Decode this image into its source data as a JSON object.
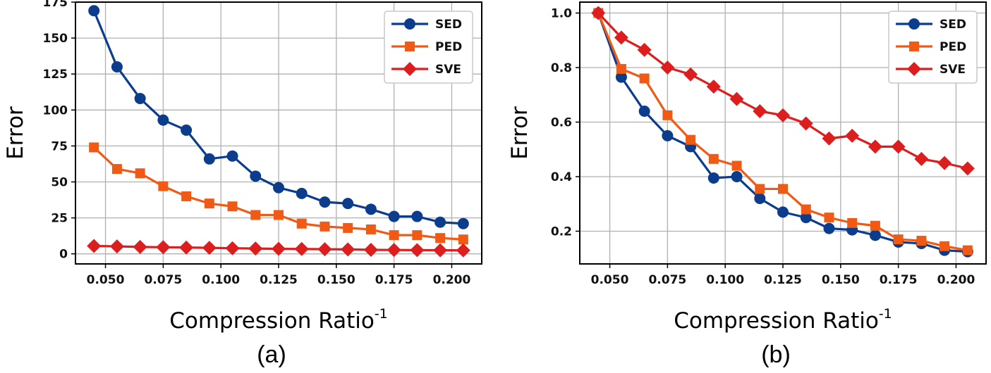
{
  "chart_data": [
    {
      "type": "line",
      "panel_label": "(a)",
      "xlabel": "Compression Ratio",
      "xlabel_sup": "-1",
      "ylabel": "Error",
      "x": [
        0.045,
        0.055,
        0.065,
        0.075,
        0.085,
        0.095,
        0.105,
        0.115,
        0.125,
        0.135,
        0.145,
        0.155,
        0.165,
        0.175,
        0.185,
        0.195,
        0.205
      ],
      "xlim": [
        0.037,
        0.213
      ],
      "ylim": [
        -7,
        175
      ],
      "xticks": [
        0.05,
        0.075,
        0.1,
        0.125,
        0.15,
        0.175,
        0.2
      ],
      "xtick_labels": [
        "0.050",
        "0.075",
        "0.100",
        "0.125",
        "0.150",
        "0.175",
        "0.200"
      ],
      "yticks": [
        0,
        25,
        50,
        75,
        100,
        125,
        150,
        175
      ],
      "ytick_labels": [
        "0",
        "25",
        "50",
        "75",
        "100",
        "125",
        "150",
        "175"
      ],
      "grid": true,
      "legend_position": "top-right",
      "series": [
        {
          "name": "SED",
          "color": "#0b3d8c",
          "marker": "circle",
          "values": [
            169,
            130,
            108,
            93,
            86,
            66,
            68,
            54,
            46,
            42,
            36,
            35,
            31,
            26,
            26,
            22,
            21
          ]
        },
        {
          "name": "PED",
          "color": "#f05a14",
          "marker": "square",
          "values": [
            74,
            59,
            56,
            47,
            40,
            35,
            33,
            27,
            27,
            21,
            19,
            18,
            17,
            13,
            13,
            11,
            10
          ]
        },
        {
          "name": "SVE",
          "color": "#dc1e1e",
          "marker": "diamond",
          "values": [
            5.5,
            5.2,
            4.8,
            4.6,
            4.4,
            4.2,
            3.9,
            3.7,
            3.5,
            3.4,
            3.2,
            3.1,
            2.8,
            2.7,
            2.6,
            2.5,
            2.4
          ]
        }
      ]
    },
    {
      "type": "line",
      "panel_label": "(b)",
      "xlabel": "Compression Ratio",
      "xlabel_sup": "-1",
      "ylabel": "Error",
      "x": [
        0.045,
        0.055,
        0.065,
        0.075,
        0.085,
        0.095,
        0.105,
        0.115,
        0.125,
        0.135,
        0.145,
        0.155,
        0.165,
        0.175,
        0.185,
        0.195,
        0.205
      ],
      "xlim": [
        0.037,
        0.213
      ],
      "ylim": [
        0.08,
        1.04
      ],
      "xticks": [
        0.05,
        0.075,
        0.1,
        0.125,
        0.15,
        0.175,
        0.2
      ],
      "xtick_labels": [
        "0.050",
        "0.075",
        "0.100",
        "0.125",
        "0.150",
        "0.175",
        "0.200"
      ],
      "yticks": [
        0.2,
        0.4,
        0.6,
        0.8,
        1.0
      ],
      "ytick_labels": [
        "0.2",
        "0.4",
        "0.6",
        "0.8",
        "1.0"
      ],
      "grid": true,
      "legend_position": "top-right",
      "series": [
        {
          "name": "SED",
          "color": "#0b3d8c",
          "marker": "circle",
          "values": [
            1.0,
            0.765,
            0.64,
            0.55,
            0.51,
            0.395,
            0.4,
            0.32,
            0.27,
            0.25,
            0.21,
            0.205,
            0.185,
            0.16,
            0.155,
            0.13,
            0.125
          ]
        },
        {
          "name": "PED",
          "color": "#f05a14",
          "marker": "square",
          "values": [
            1.0,
            0.795,
            0.76,
            0.625,
            0.535,
            0.465,
            0.44,
            0.355,
            0.355,
            0.28,
            0.25,
            0.23,
            0.22,
            0.17,
            0.165,
            0.145,
            0.13
          ]
        },
        {
          "name": "SVE",
          "color": "#dc1e1e",
          "marker": "diamond",
          "values": [
            1.0,
            0.91,
            0.865,
            0.8,
            0.775,
            0.73,
            0.685,
            0.64,
            0.625,
            0.595,
            0.54,
            0.55,
            0.51,
            0.51,
            0.465,
            0.45,
            0.43
          ]
        }
      ]
    }
  ]
}
